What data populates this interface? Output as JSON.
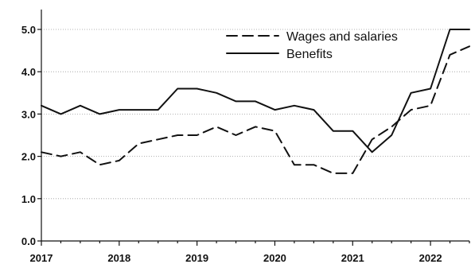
{
  "chart_data": {
    "type": "line",
    "title": "",
    "xlabel": "",
    "ylabel": "",
    "xlim": [
      2017,
      2022.5
    ],
    "ylim": [
      0,
      5.2
    ],
    "grid": true,
    "legend_position": "top-right",
    "x_ticks": [
      2017,
      2018,
      2019,
      2020,
      2021,
      2022
    ],
    "x_tick_labels": [
      "2017",
      "2018",
      "2019",
      "2020",
      "2021",
      "2022"
    ],
    "y_ticks": [
      0,
      1,
      2,
      3,
      4,
      5
    ],
    "y_tick_labels": [
      "0.0",
      "1.0",
      "2.0",
      "3.0",
      "4.0",
      "5.0"
    ],
    "x": [
      2017.0,
      2017.25,
      2017.5,
      2017.75,
      2018.0,
      2018.25,
      2018.5,
      2018.75,
      2019.0,
      2019.25,
      2019.5,
      2019.75,
      2020.0,
      2020.25,
      2020.5,
      2020.75,
      2021.0,
      2021.25,
      2021.5,
      2021.75,
      2022.0,
      2022.25,
      2022.5
    ],
    "series": [
      {
        "name": "Wages and salaries",
        "style": "dashed",
        "color": "#111111",
        "values": [
          2.1,
          2.0,
          2.1,
          1.8,
          1.9,
          2.3,
          2.4,
          2.5,
          2.5,
          2.7,
          2.5,
          2.7,
          2.6,
          1.8,
          1.8,
          1.6,
          1.6,
          2.4,
          2.7,
          3.1,
          3.2,
          4.4,
          4.6
        ]
      },
      {
        "name": "Benefits",
        "style": "solid",
        "color": "#111111",
        "values": [
          3.2,
          3.0,
          3.2,
          3.0,
          3.1,
          3.1,
          3.1,
          3.6,
          3.6,
          3.5,
          3.3,
          3.3,
          3.1,
          3.2,
          3.1,
          2.6,
          2.6,
          2.1,
          2.5,
          3.5,
          3.6,
          5.0,
          5.0
        ]
      }
    ]
  }
}
